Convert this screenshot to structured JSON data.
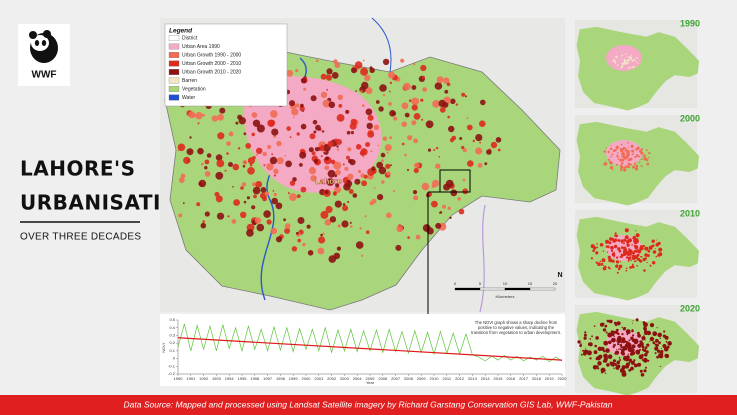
{
  "header": {
    "title_lines": [
      "LAHORE'S",
      "URBANISATION"
    ],
    "subtitle": "OVER THREE DECADES",
    "logo_text": "WWF"
  },
  "legend": {
    "title": "Legend",
    "items": [
      {
        "label": "District",
        "color": "#ffffff"
      },
      {
        "label": "Urban Area 1990",
        "color": "#f4a9c4"
      },
      {
        "label": "Urban Growth 1990 - 2000",
        "color": "#f26b55"
      },
      {
        "label": "Urban Growth 2000 - 2010",
        "color": "#dd2a1f"
      },
      {
        "label": "Urban Growth 2010 - 2020",
        "color": "#8c1212"
      },
      {
        "label": "Barren",
        "color": "#f2e6c4"
      },
      {
        "label": "Vegetation",
        "color": "#a9d67a"
      },
      {
        "label": "Water",
        "color": "#1f4fcf"
      }
    ]
  },
  "map": {
    "labels": [
      "Lahore"
    ],
    "scale_title": "Kilometers",
    "scale_ticks": [
      0,
      5,
      10,
      15,
      20
    ],
    "north": "N"
  },
  "thumbnails": [
    {
      "year": "1990"
    },
    {
      "year": "2000"
    },
    {
      "year": "2010"
    },
    {
      "year": "2020"
    }
  ],
  "chart_data": {
    "type": "line",
    "y_label": "NDVI",
    "x_label": "Year",
    "annotation": "The NDVI graph shows a sharp decline from positive to negative values, indicating the transition from vegetation to urban development.",
    "xlim": [
      1990,
      2020
    ],
    "xticks": [
      1990,
      1991,
      1992,
      1993,
      1994,
      1995,
      1996,
      1997,
      1998,
      1999,
      2000,
      2001,
      2002,
      2003,
      2004,
      2005,
      2006,
      2007,
      2008,
      2009,
      2010,
      2011,
      2012,
      2013,
      2014,
      2015,
      2016,
      2017,
      2018,
      2019,
      2020
    ],
    "ylim": [
      -0.2,
      0.5
    ],
    "yticks": [
      -0.2,
      -0.1,
      0,
      0.1,
      0.2,
      0.3,
      0.4,
      0.5
    ],
    "series": [
      {
        "color": "#5cc639",
        "x": [
          1990,
          1990.5,
          1991,
          1991.5,
          1992,
          1992.5,
          1993,
          1993.5,
          1994,
          1994.5,
          1995,
          1995.5,
          1996,
          1996.5,
          1997,
          1997.5,
          1998,
          1998.5,
          1999,
          1999.5,
          2000,
          2000.5,
          2001,
          2001.5,
          2002,
          2002.5,
          2003,
          2003.5,
          2004,
          2004.5,
          2005,
          2005.5,
          2006,
          2006.5,
          2007,
          2007.5,
          2008,
          2008.5,
          2009,
          2009.5,
          2010,
          2010.5,
          2011,
          2011.5,
          2012,
          2012.5,
          2013,
          2013.5,
          2014,
          2014.5,
          2015,
          2015.5,
          2016,
          2016.5,
          2017,
          2017.5,
          2018,
          2018.5,
          2019,
          2019.5,
          2020
        ],
        "values": [
          0.15,
          0.45,
          0.1,
          0.43,
          0.12,
          0.42,
          0.1,
          0.44,
          0.13,
          0.4,
          0.1,
          0.42,
          0.12,
          0.38,
          0.1,
          0.41,
          0.11,
          0.4,
          0.09,
          0.39,
          0.12,
          0.38,
          0.1,
          0.4,
          0.08,
          0.37,
          0.1,
          0.38,
          0.09,
          0.36,
          0.1,
          0.37,
          0.08,
          0.38,
          0.09,
          0.35,
          0.07,
          0.36,
          0.08,
          0.34,
          0.06,
          0.35,
          0.07,
          0.33,
          0.06,
          0.32,
          0.05,
          0.02,
          -0.03,
          0.03,
          -0.02,
          0.04,
          -0.02,
          0.03,
          -0.03,
          0.02,
          -0.02,
          0.03,
          -0.04,
          0.02,
          -0.03
        ]
      },
      {
        "color": "#e01818",
        "x": [
          1990,
          2020
        ],
        "values": [
          0.27,
          -0.02
        ]
      }
    ]
  },
  "footer": "Data Source: Mapped and processed using Landsat Satellite imagery by Richard Garstang Conservation GIS Lab, WWF-Pakistan"
}
